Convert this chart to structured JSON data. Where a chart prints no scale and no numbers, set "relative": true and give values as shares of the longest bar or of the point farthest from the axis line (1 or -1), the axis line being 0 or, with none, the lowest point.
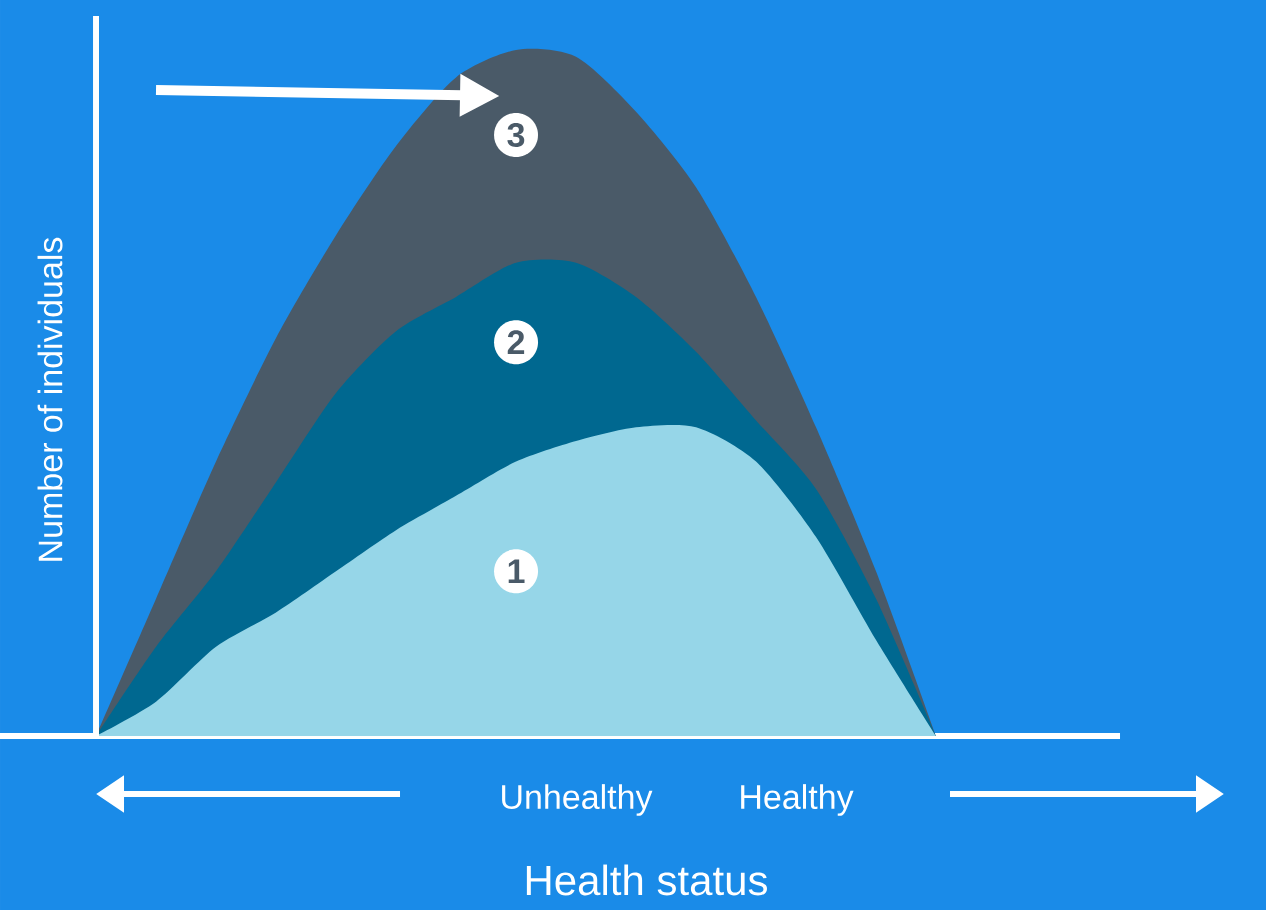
{
  "chart_data": {
    "type": "area",
    "relative": true,
    "xlabel": "Health status",
    "ylabel": "Number of individuals",
    "categories": [
      null,
      null,
      null,
      null,
      null,
      null,
      null,
      null,
      null,
      null,
      null,
      null,
      null,
      null,
      null
    ],
    "series": [
      {
        "name": "1",
        "color": "#96d6e8",
        "values": [
          0,
          0.05,
          0.13,
          0.18,
          0.24,
          0.3,
          0.35,
          0.4,
          0.43,
          0.45,
          0.45,
          0.4,
          0.29,
          0.14,
          0
        ]
      },
      {
        "name": "2",
        "color": "#006890",
        "values": [
          0,
          0.13,
          0.24,
          0.37,
          0.5,
          0.59,
          0.64,
          0.69,
          0.69,
          0.64,
          0.56,
          0.46,
          0.36,
          0.2,
          0
        ]
      },
      {
        "name": "3",
        "color": "#4a5a68",
        "values": [
          0,
          0.2,
          0.4,
          0.58,
          0.73,
          0.86,
          0.96,
          1.0,
          0.99,
          0.91,
          0.8,
          0.64,
          0.45,
          0.24,
          0
        ]
      }
    ],
    "annotations": [
      "Unhealthy",
      "Healthy"
    ]
  }
}
